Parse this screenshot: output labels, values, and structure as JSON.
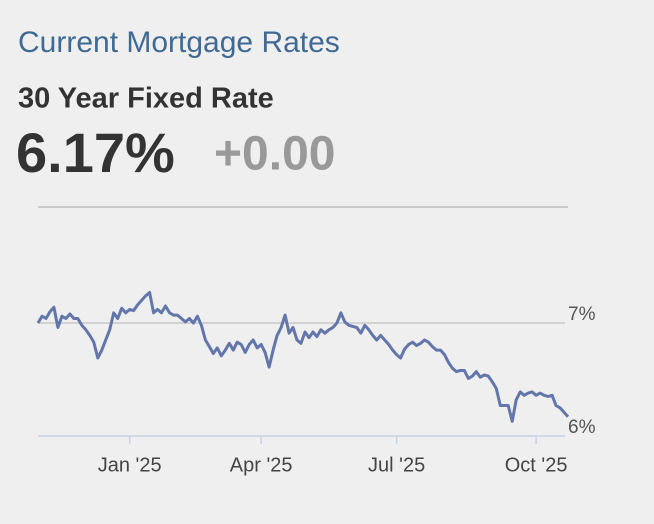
{
  "header": {
    "title": "Current Mortgage Rates",
    "subtitle": "30 Year Fixed Rate",
    "rate": "6.17%",
    "change": "+0.00"
  },
  "chart_data": {
    "type": "line",
    "categories": [
      null,
      null,
      null,
      null,
      null,
      null,
      null,
      null,
      null,
      null,
      null,
      null,
      null,
      null,
      null,
      null,
      null,
      null,
      null,
      null,
      null,
      null,
      null,
      null,
      null,
      null,
      null,
      null,
      null,
      null,
      null,
      null,
      null,
      null,
      null,
      null,
      null,
      null,
      null,
      null,
      null,
      null,
      null,
      null,
      null,
      null,
      null,
      null,
      null,
      null,
      null,
      null,
      null,
      null,
      null,
      null,
      null,
      null,
      null,
      null,
      null,
      null,
      null,
      null,
      null,
      null,
      null,
      null,
      null,
      null,
      null,
      null,
      null,
      null,
      null,
      null,
      null,
      null,
      null,
      null,
      null,
      null,
      null,
      null,
      null,
      null,
      null,
      null,
      null,
      null,
      null,
      null,
      null,
      null,
      null,
      null,
      null,
      null,
      null,
      null,
      null,
      null,
      null,
      null,
      null,
      null,
      null,
      null,
      null,
      null,
      null,
      null,
      null,
      null,
      null,
      null,
      null,
      null,
      null,
      null,
      null,
      null,
      null,
      null,
      null,
      null,
      null,
      null,
      null,
      null,
      null,
      null,
      null,
      null
    ],
    "series": [
      {
        "color": "#6276ab",
        "values": [
          7.0,
          7.06,
          7.04,
          7.1,
          7.14,
          6.96,
          7.06,
          7.04,
          7.08,
          7.04,
          7.04,
          6.98,
          6.94,
          6.89,
          6.83,
          6.69,
          6.76,
          6.85,
          6.94,
          7.09,
          7.04,
          7.13,
          7.09,
          7.12,
          7.11,
          7.16,
          7.2,
          7.24,
          7.27,
          7.09,
          7.12,
          7.09,
          7.15,
          7.09,
          7.07,
          7.07,
          7.04,
          7.01,
          7.04,
          7.0,
          7.06,
          6.98,
          6.85,
          6.79,
          6.73,
          6.78,
          6.71,
          6.76,
          6.82,
          6.76,
          6.83,
          6.81,
          6.74,
          6.81,
          6.85,
          6.78,
          6.81,
          6.74,
          6.61,
          6.76,
          6.89,
          6.96,
          7.07,
          6.91,
          6.96,
          6.85,
          6.82,
          6.92,
          6.87,
          6.92,
          6.88,
          6.94,
          6.91,
          6.94,
          6.96,
          7.0,
          7.09,
          7.01,
          6.98,
          6.97,
          6.96,
          6.91,
          6.98,
          6.94,
          6.89,
          6.85,
          6.89,
          6.85,
          6.81,
          6.76,
          6.72,
          6.69,
          6.77,
          6.81,
          6.83,
          6.8,
          6.82,
          6.85,
          6.83,
          6.79,
          6.76,
          6.76,
          6.72,
          6.65,
          6.6,
          6.57,
          6.58,
          6.58,
          6.51,
          6.53,
          6.57,
          6.52,
          6.54,
          6.53,
          6.48,
          6.42,
          6.27,
          6.27,
          6.27,
          6.13,
          6.32,
          6.39,
          6.36,
          6.38,
          6.39,
          6.36,
          6.38,
          6.36,
          6.35,
          6.36,
          6.27,
          6.25,
          6.21,
          6.17
        ]
      }
    ],
    "xticks": [
      {
        "value": 23,
        "label": "Jan '25"
      },
      {
        "value": 56,
        "label": "Apr '25"
      },
      {
        "value": 90,
        "label": "Jul '25"
      },
      {
        "value": 125,
        "label": "Oct '25"
      }
    ],
    "ylim": [
      6,
      8
    ],
    "yticks": [
      {
        "value": 6,
        "label": "6%"
      },
      {
        "value": 7,
        "label": "7%"
      }
    ],
    "grid": true
  }
}
